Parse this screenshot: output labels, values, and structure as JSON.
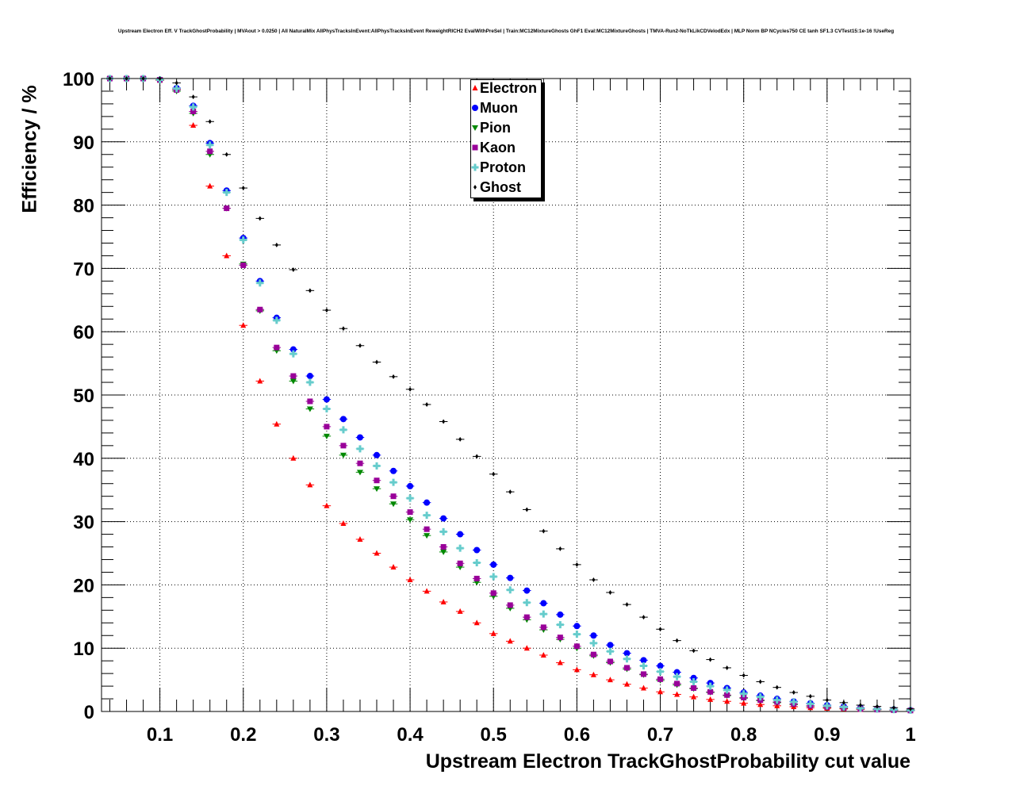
{
  "chart_data": {
    "type": "scatter",
    "title": "Upstream Electron Eff. V TrackGhostProbability | MVAout > 0.0250 | All NaturalMix AllPhysTracksInEvent:AllPhysTracksInEvent ReweightRICH2 EvalWithPreSel | Train:MC12MixtureGhosts GhF1 Eval:MC12MixtureGhosts | TMVA-Run2-NoTkLikCDVelodEdx | MLP Norm BP NCycles750 CE tanh SF1.3 CVTest15:1e-16 !UseReg",
    "xlabel": "Upstream Electron TrackGhostProbability cut value",
    "ylabel": "Efficiency / %",
    "xlim": [
      0.03,
      1.0
    ],
    "ylim": [
      0,
      100
    ],
    "grid": true,
    "legend_position": "top-center",
    "xticks": [
      "0.1",
      "0.2",
      "0.3",
      "0.4",
      "0.5",
      "0.6",
      "0.7",
      "0.8",
      "0.9",
      "1"
    ],
    "yticks": [
      "0",
      "10",
      "20",
      "30",
      "40",
      "50",
      "60",
      "70",
      "80",
      "90",
      "100"
    ],
    "x": [
      0.04,
      0.06,
      0.08,
      0.1,
      0.12,
      0.14,
      0.16,
      0.18,
      0.2,
      0.22,
      0.24,
      0.26,
      0.28,
      0.3,
      0.32,
      0.34,
      0.36,
      0.38,
      0.4,
      0.42,
      0.44,
      0.46,
      0.48,
      0.5,
      0.52,
      0.54,
      0.56,
      0.58,
      0.6,
      0.62,
      0.64,
      0.66,
      0.68,
      0.7,
      0.72,
      0.74,
      0.76,
      0.78,
      0.8,
      0.82,
      0.84,
      0.86,
      0.88,
      0.9,
      0.92,
      0.94,
      0.96,
      0.98,
      1.0
    ],
    "series": [
      {
        "name": "Electron",
        "color": "#ff0000",
        "marker": "triangle-up",
        "values": [
          100,
          100,
          100,
          99.7,
          98.3,
          92.6,
          83.0,
          72.0,
          61.0,
          52.2,
          45.4,
          40.0,
          35.8,
          32.5,
          29.7,
          27.2,
          25.0,
          22.8,
          20.8,
          19.0,
          17.3,
          15.8,
          14.0,
          12.3,
          11.1,
          10.0,
          8.9,
          7.7,
          6.6,
          5.8,
          5.0,
          4.3,
          3.7,
          3.1,
          2.7,
          2.3,
          1.9,
          1.6,
          1.3,
          1.1,
          0.9,
          0.75,
          0.6,
          0.5,
          0.4,
          0.3,
          0.25,
          0.2,
          0.15
        ]
      },
      {
        "name": "Muon",
        "color": "#0000ff",
        "marker": "circle",
        "values": [
          100,
          100,
          100,
          99.8,
          98.5,
          95.7,
          89.8,
          82.3,
          74.8,
          68.0,
          62.2,
          57.2,
          53.0,
          49.3,
          46.2,
          43.3,
          40.5,
          38.0,
          35.6,
          33.0,
          30.5,
          28.0,
          25.5,
          23.2,
          21.1,
          19.1,
          17.1,
          15.3,
          13.5,
          12.0,
          10.5,
          9.2,
          8.1,
          7.2,
          6.2,
          5.3,
          4.5,
          3.7,
          3.0,
          2.5,
          2.0,
          1.6,
          1.3,
          1.0,
          0.8,
          0.6,
          0.4,
          0.3,
          0.2
        ]
      },
      {
        "name": "Pion",
        "color": "#008800",
        "marker": "triangle-down",
        "values": [
          100,
          100,
          100,
          99.8,
          98.0,
          94.5,
          88.0,
          79.5,
          70.7,
          63.3,
          57.0,
          52.2,
          47.8,
          43.5,
          40.5,
          37.8,
          35.2,
          32.8,
          30.3,
          27.8,
          25.2,
          22.8,
          20.4,
          18.2,
          16.3,
          14.5,
          12.9,
          11.4,
          10.0,
          8.8,
          7.7,
          6.7,
          5.8,
          4.9,
          4.2,
          3.6,
          3.0,
          2.5,
          2.1,
          1.7,
          1.4,
          1.1,
          0.85,
          0.65,
          0.5,
          0.38,
          0.28,
          0.2,
          0.15
        ]
      },
      {
        "name": "Kaon",
        "color": "#990099",
        "marker": "square",
        "values": [
          100,
          100,
          100,
          99.8,
          98.2,
          94.8,
          88.5,
          79.5,
          70.5,
          63.5,
          57.5,
          53.0,
          49.0,
          45.0,
          42.0,
          39.2,
          36.5,
          34.0,
          31.5,
          28.8,
          26.0,
          23.4,
          21.0,
          18.7,
          16.8,
          14.9,
          13.3,
          11.7,
          10.3,
          9.0,
          7.9,
          6.9,
          5.9,
          5.1,
          4.4,
          3.7,
          3.1,
          2.6,
          2.2,
          1.8,
          1.5,
          1.2,
          0.9,
          0.7,
          0.55,
          0.4,
          0.3,
          0.2,
          0.15
        ]
      },
      {
        "name": "Proton",
        "color": "#66cccc",
        "marker": "cross",
        "values": [
          100,
          100,
          100,
          99.8,
          98.4,
          95.5,
          89.5,
          82.0,
          74.5,
          67.7,
          61.8,
          56.5,
          52.0,
          47.8,
          44.5,
          41.5,
          38.8,
          36.2,
          33.7,
          31.0,
          28.4,
          25.8,
          23.5,
          21.3,
          19.2,
          17.2,
          15.4,
          13.7,
          12.2,
          10.8,
          9.5,
          8.3,
          7.2,
          6.3,
          5.5,
          4.7,
          4.0,
          3.4,
          2.8,
          2.3,
          1.8,
          1.5,
          1.2,
          0.9,
          0.7,
          0.5,
          0.4,
          0.3,
          0.2
        ]
      },
      {
        "name": "Ghost",
        "color": "#000000",
        "marker": "diamond",
        "values": [
          100,
          100,
          100,
          100,
          99.3,
          97.1,
          93.2,
          88.0,
          82.7,
          77.9,
          73.7,
          69.8,
          66.5,
          63.4,
          60.5,
          57.8,
          55.2,
          52.9,
          50.9,
          48.5,
          45.8,
          43.0,
          40.3,
          37.5,
          34.7,
          31.9,
          28.5,
          25.7,
          23.2,
          20.8,
          18.8,
          16.9,
          14.9,
          13.0,
          11.2,
          9.6,
          8.2,
          6.9,
          5.7,
          4.7,
          3.8,
          3.0,
          2.4,
          1.8,
          1.4,
          1.0,
          0.8,
          0.6,
          0.4
        ]
      }
    ]
  }
}
